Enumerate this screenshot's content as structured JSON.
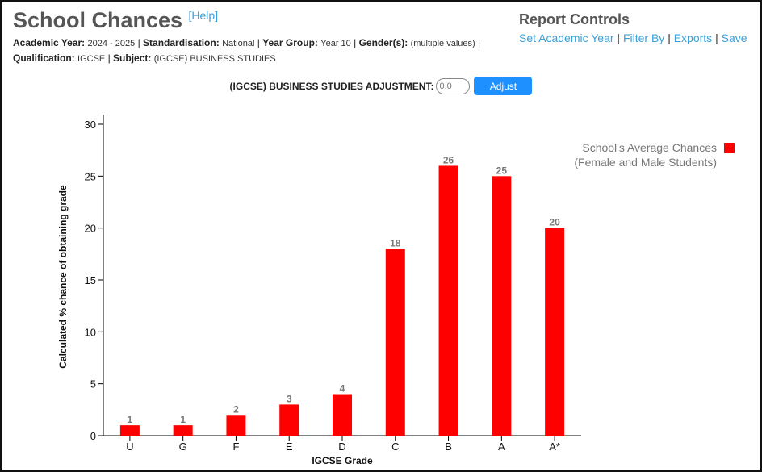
{
  "header": {
    "title": "School Chances",
    "help": "[Help]"
  },
  "meta": {
    "academic_year_label": "Academic Year:",
    "academic_year": "2024 - 2025",
    "standardisation_label": "Standardisation:",
    "standardisation": "National",
    "year_group_label": "Year Group:",
    "year_group": "Year 10",
    "gender_label": "Gender(s):",
    "gender": "(multiple values)",
    "qualification_label": "Qualification:",
    "qualification": "IGCSE",
    "subject_label": "Subject:",
    "subject": "(IGCSE) BUSINESS STUDIES"
  },
  "controls": {
    "title": "Report Controls",
    "links": [
      "Set Academic Year",
      "Filter By",
      "Exports",
      "Save"
    ],
    "separator": "|"
  },
  "adjust": {
    "label": "(IGCSE) BUSINESS STUDIES ADJUSTMENT:",
    "placeholder": "0.0",
    "button": "Adjust"
  },
  "chart_data": {
    "type": "bar",
    "categories": [
      "U",
      "G",
      "F",
      "E",
      "D",
      "C",
      "B",
      "A",
      "A*"
    ],
    "series": [
      {
        "name": "School's Average Chances (Female and Male Students)",
        "legend_lines": [
          "School's Average Chances",
          "(Female and Male Students)"
        ],
        "values": [
          1,
          1,
          2,
          3,
          4,
          18,
          26,
          25,
          20
        ],
        "color": "#ff0000"
      }
    ],
    "xlabel": "IGCSE Grade",
    "ylabel": "Calculated % chance of obtaining grade",
    "ylim": [
      0,
      30
    ],
    "yticks": [
      0,
      5,
      10,
      15,
      20,
      25,
      30
    ],
    "grid": false,
    "legend": "top-right",
    "data_labels": true
  }
}
